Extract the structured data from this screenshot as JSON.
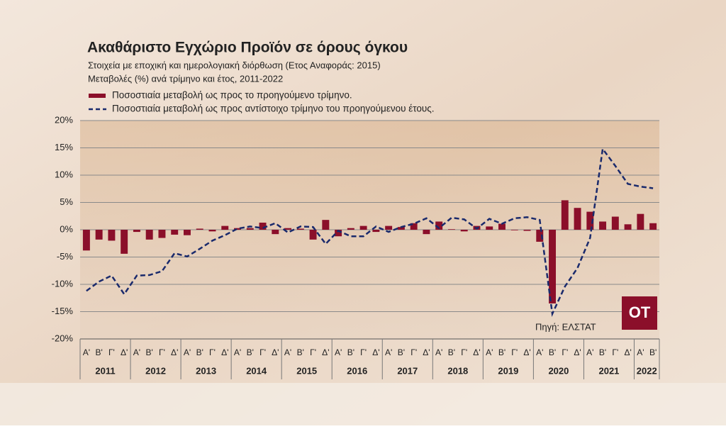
{
  "chart_data": {
    "type": "combo",
    "title": "Ακαθάριστο Εγχώριο Προϊόν σε όρους όγκου",
    "subtitle": [
      "Στοιχεία με εποχική και ημερολογιακή διόρθωση (Ετος Αναφοράς:  2015)",
      "Μεταβολές (%) ανά τρίμηνο και έτος, 2011-2022"
    ],
    "categories": [
      "Α'",
      "Β'",
      "Γ'",
      "Δ'",
      "Α'",
      "Β'",
      "Γ'",
      "Δ'",
      "Α'",
      "Β'",
      "Γ'",
      "Δ'",
      "Α'",
      "Β'",
      "Γ'",
      "Δ'",
      "Α'",
      "Β'",
      "Γ'",
      "Δ'",
      "Α'",
      "Β'",
      "Γ'",
      "Δ'",
      "Α'",
      "Β'",
      "Γ'",
      "Δ'",
      "Α'",
      "Β'",
      "Γ'",
      "Δ'",
      "Α'",
      "Β'",
      "Γ'",
      "Δ'",
      "Α'",
      "Β'",
      "Γ'",
      "Δ'",
      "Α'",
      "Β'",
      "Γ'",
      "Δ'",
      "Α'",
      "Β'"
    ],
    "years": [
      "2011",
      "2012",
      "2013",
      "2014",
      "2015",
      "2016",
      "2017",
      "2018",
      "2019",
      "2020",
      "2021",
      "2022"
    ],
    "series": [
      {
        "name": "Ποσοστιαία μεταβολή ως προς το προηγούμενο τρίμηνο.",
        "type": "bar",
        "color": "#8b0f2a",
        "values": [
          -3.8,
          -1.8,
          -2.0,
          -4.4,
          -0.4,
          -1.8,
          -1.5,
          -0.9,
          -1.0,
          0.2,
          -0.3,
          0.7,
          0.3,
          0.3,
          1.3,
          -0.8,
          0.3,
          0.2,
          -1.8,
          1.8,
          -1.2,
          0.3,
          0.7,
          -0.4,
          0.7,
          0.5,
          1.2,
          -0.8,
          1.5,
          0.1,
          -0.3,
          0.7,
          0.6,
          1.1,
          -0.1,
          -0.2,
          -2.2,
          -13.5,
          5.4,
          4.0,
          3.3,
          1.5,
          2.4,
          1.0,
          2.9,
          1.2
        ]
      },
      {
        "name": "Ποσοστιαία μεταβολή ως προς αντίστοιχο τρίμηνο του προηγούμενου έτους.",
        "type": "line",
        "color": "#1a2a6c",
        "values": [
          -11.2,
          -9.5,
          -8.4,
          -11.8,
          -8.4,
          -8.3,
          -7.6,
          -4.3,
          -4.9,
          -3.5,
          -2.0,
          -1.0,
          0.2,
          0.6,
          0.3,
          1.2,
          -0.5,
          0.6,
          0.5,
          -2.6,
          -0.2,
          -1.2,
          -1.2,
          0.6,
          -0.4,
          0.5,
          1.1,
          2.1,
          0.3,
          2.2,
          1.9,
          0.2,
          2.0,
          1.1,
          2.1,
          2.3,
          1.8,
          -15.4,
          -10.4,
          -7.0,
          -1.5,
          14.8,
          11.7,
          8.4,
          7.9,
          7.6
        ]
      }
    ],
    "ylim": [
      -20,
      20
    ],
    "yticks": [
      {
        "value": -20,
        "label": "-20%"
      },
      {
        "value": -15,
        "label": "-15%"
      },
      {
        "value": -10,
        "label": "-10%"
      },
      {
        "value": -5,
        "label": "-5%"
      },
      {
        "value": 0,
        "label": "0%"
      },
      {
        "value": 5,
        "label": "5%"
      },
      {
        "value": 10,
        "label": "10%"
      },
      {
        "value": 15,
        "label": "15%"
      },
      {
        "value": 20,
        "label": "20%"
      }
    ],
    "grid": true,
    "source": "Πηγή: ΕΛΣΤΑΤ",
    "logo": "OT"
  }
}
